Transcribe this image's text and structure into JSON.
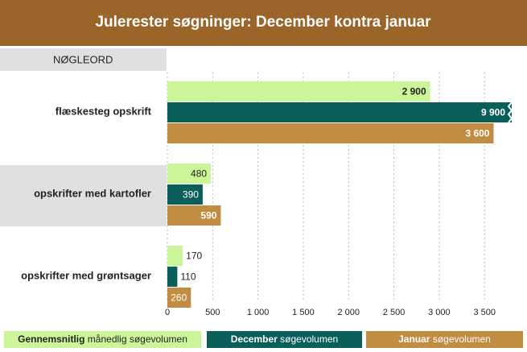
{
  "chart_data": {
    "type": "barh",
    "title": "Julerester søgninger: December kontra januar",
    "category_header": "NØGLEORD",
    "categories": [
      "flæskesteg opskrift",
      "opskrifter med kartofler",
      "opskrifter med grøntsager"
    ],
    "series": [
      {
        "name": "Gennemsnitlig månedlig søgevolumen",
        "color": "#ccf59a",
        "values": [
          2900,
          480,
          170
        ],
        "value_labels": [
          "2 900",
          "480",
          "170"
        ]
      },
      {
        "name": "December søgevolumen",
        "color": "#0b5f5a",
        "values": [
          9900,
          390,
          110
        ],
        "value_labels": [
          "9 900",
          "390",
          "110"
        ]
      },
      {
        "name": "Januar søgevolumen",
        "color": "#c18d42",
        "values": [
          3600,
          590,
          260
        ],
        "value_labels": [
          "3 600",
          "590",
          "260"
        ]
      }
    ],
    "xlim": [
      0,
      3800
    ],
    "xticks": [
      0,
      500,
      {
        "value": 1000,
        "label": "1 000"
      },
      {
        "value": 1500,
        "label": "1 500"
      },
      {
        "value": 2000,
        "label": "2 000"
      },
      {
        "value": 2500,
        "label": "2 500"
      },
      {
        "value": 3000,
        "label": "3 000"
      },
      {
        "value": 3500,
        "label": "3 500"
      }
    ],
    "grid": true
  }
}
